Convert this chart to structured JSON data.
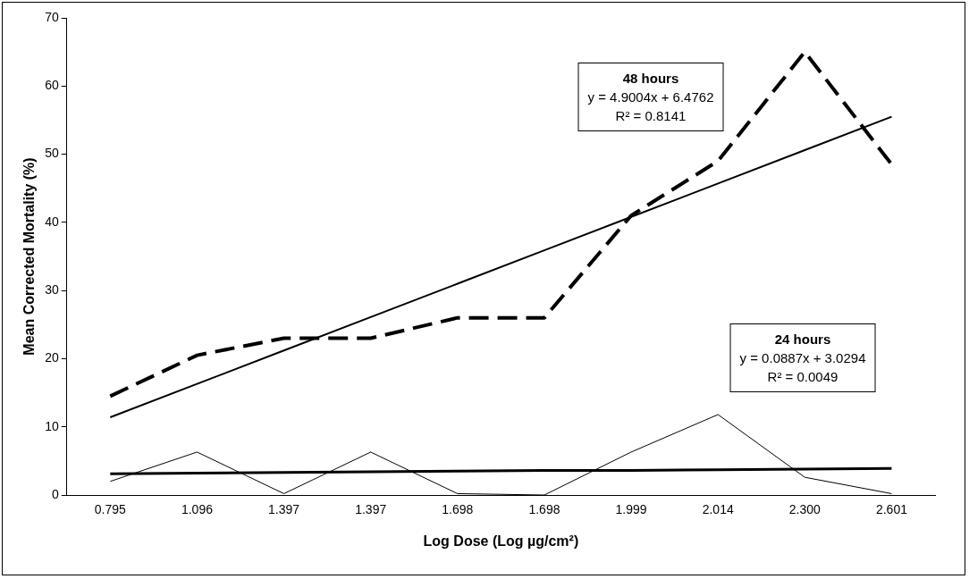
{
  "chart_data": {
    "type": "line",
    "xlabel": "Log Dose (Log µg/cm²)",
    "ylabel": "Mean Corrected Mortality (%)",
    "categories": [
      "0.795",
      "1.096",
      "1.397",
      "1.397",
      "1.698",
      "1.698",
      "1.999",
      "2.014",
      "2.300",
      "2.601"
    ],
    "series": [
      {
        "color": "#000000",
        "line_style": "dashed",
        "values": [
          14.5,
          20.5,
          23,
          23,
          26,
          26,
          41,
          49,
          65,
          48.5
        ]
      },
      {
        "color": "#000000",
        "line_style": "solid",
        "values": [
          2,
          6.3,
          0.2,
          6.3,
          0.2,
          0,
          6.3,
          11.8,
          2.6,
          0.2
        ]
      },
      {
        "color": "#000000",
        "line_style": "solid",
        "values": [
          11.4,
          16.3,
          21.2,
          26.1,
          31,
          35.9,
          40.8,
          45.7,
          50.6,
          55.5
        ]
      },
      {
        "color": "#000000",
        "line_style": "solid",
        "values": [
          3.1,
          3.2,
          3.3,
          3.4,
          3.5,
          3.6,
          3.6,
          3.7,
          3.8,
          3.9
        ]
      }
    ],
    "ylim": [
      0,
      70
    ],
    "yticks": [
      0,
      10,
      20,
      30,
      40,
      50,
      60,
      70
    ],
    "grid": false,
    "legend": false,
    "marker": "none",
    "annotations": [
      "48 hours\ny = 4.9004x + 6.4762\nR² = 0.8141",
      "24 hours\ny = 0.0887x + 3.0294\nR² = 0.0049"
    ]
  }
}
